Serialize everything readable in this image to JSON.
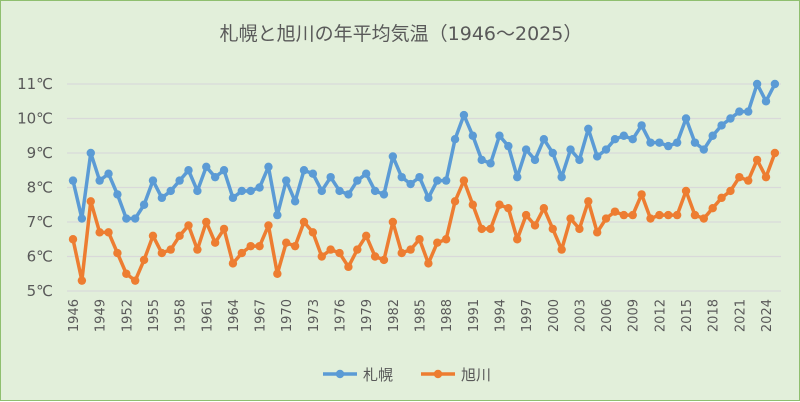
{
  "chart_data": {
    "type": "line",
    "title": "札幌と旭川の年平均気温（1946～2025）",
    "xlabel": "",
    "ylabel": "",
    "ylim": [
      5,
      11
    ],
    "yticks": [
      "5℃",
      "6℃",
      "7℃",
      "8℃",
      "9℃",
      "10℃",
      "11℃"
    ],
    "grid": true,
    "legend": "bottom",
    "x": [
      1946,
      1947,
      1948,
      1949,
      1950,
      1951,
      1952,
      1953,
      1954,
      1955,
      1956,
      1957,
      1958,
      1959,
      1960,
      1961,
      1962,
      1963,
      1964,
      1965,
      1966,
      1967,
      1968,
      1969,
      1970,
      1971,
      1972,
      1973,
      1974,
      1975,
      1976,
      1977,
      1978,
      1979,
      1980,
      1981,
      1982,
      1983,
      1984,
      1985,
      1986,
      1987,
      1988,
      1989,
      1990,
      1991,
      1992,
      1993,
      1994,
      1995,
      1996,
      1997,
      1998,
      1999,
      2000,
      2001,
      2002,
      2003,
      2004,
      2005,
      2006,
      2007,
      2008,
      2009,
      2010,
      2011,
      2012,
      2013,
      2014,
      2015,
      2016,
      2017,
      2018,
      2019,
      2020,
      2021,
      2022,
      2023,
      2024,
      2025
    ],
    "xticks": [
      "1946",
      "1949",
      "1952",
      "1955",
      "1958",
      "1961",
      "1964",
      "1967",
      "1970",
      "1973",
      "1976",
      "1979",
      "1982",
      "1985",
      "1988",
      "1991",
      "1994",
      "1997",
      "2000",
      "2003",
      "2006",
      "2009",
      "2012",
      "2015",
      "2018",
      "2021",
      "2024"
    ],
    "series": [
      {
        "name": "札幌",
        "color": "#5b9bd5",
        "values": [
          8.2,
          7.1,
          9.0,
          8.2,
          8.4,
          7.8,
          7.1,
          7.1,
          7.5,
          8.2,
          7.7,
          7.9,
          8.2,
          8.5,
          7.9,
          8.6,
          8.3,
          8.5,
          7.7,
          7.9,
          7.9,
          8.0,
          8.6,
          7.2,
          8.2,
          7.6,
          8.5,
          8.4,
          7.9,
          8.3,
          7.9,
          7.8,
          8.2,
          8.4,
          7.9,
          7.8,
          8.9,
          8.3,
          8.1,
          8.3,
          7.7,
          8.2,
          8.2,
          9.4,
          10.1,
          9.5,
          8.8,
          8.7,
          9.5,
          9.2,
          8.3,
          9.1,
          8.8,
          9.4,
          9.0,
          8.3,
          9.1,
          8.8,
          9.7,
          8.9,
          9.1,
          9.4,
          9.5,
          9.4,
          9.8,
          9.3,
          9.3,
          9.2,
          9.3,
          10.0,
          9.3,
          9.1,
          9.5,
          9.8,
          10.0,
          10.2,
          10.2,
          11.0,
          10.5,
          11.0
        ]
      },
      {
        "name": "旭川",
        "color": "#ed7d31",
        "values": [
          6.5,
          5.3,
          7.6,
          6.7,
          6.7,
          6.1,
          5.5,
          5.3,
          5.9,
          6.6,
          6.1,
          6.2,
          6.6,
          6.9,
          6.2,
          7.0,
          6.4,
          6.8,
          5.8,
          6.1,
          6.3,
          6.3,
          6.9,
          5.5,
          6.4,
          6.3,
          7.0,
          6.7,
          6.0,
          6.2,
          6.1,
          5.7,
          6.2,
          6.6,
          6.0,
          5.9,
          7.0,
          6.1,
          6.2,
          6.5,
          5.8,
          6.4,
          6.5,
          7.6,
          8.2,
          7.5,
          6.8,
          6.8,
          7.5,
          7.4,
          6.5,
          7.2,
          6.9,
          7.4,
          6.8,
          6.2,
          7.1,
          6.8,
          7.6,
          6.7,
          7.1,
          7.3,
          7.2,
          7.2,
          7.8,
          7.1,
          7.2,
          7.2,
          7.2,
          7.9,
          7.2,
          7.1,
          7.4,
          7.7,
          7.9,
          8.3,
          8.2,
          8.8,
          8.3,
          9.0
        ]
      }
    ]
  }
}
